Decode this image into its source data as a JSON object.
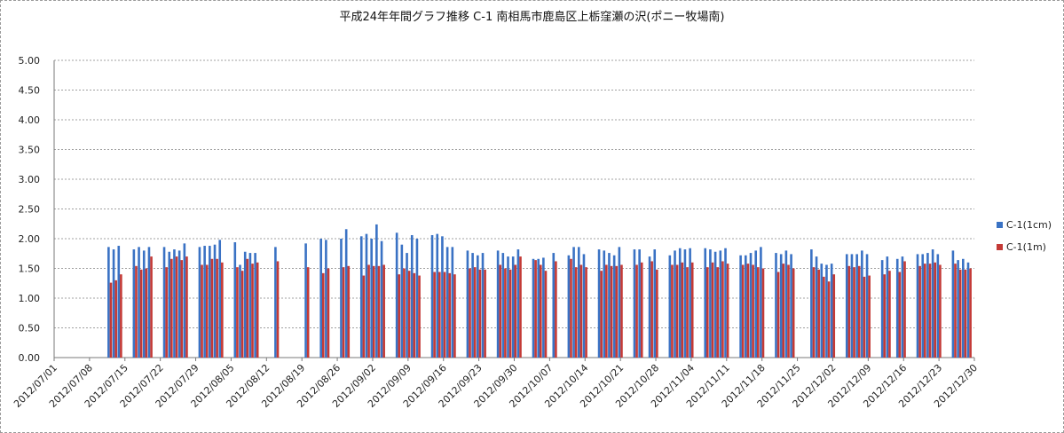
{
  "chart_data": {
    "type": "bar",
    "title": "平成24年年間グラフ推移 C-1 南相馬市鹿島区上栃窪瀬の沢(ポニー牧場南)",
    "xlabel": "",
    "ylabel": "",
    "ylim": [
      0,
      5
    ],
    "yticks": [
      "0.00",
      "0.50",
      "1.00",
      "1.50",
      "2.00",
      "2.50",
      "3.00",
      "3.50",
      "4.00",
      "4.50",
      "5.00"
    ],
    "xlim": [
      "2012/07/01",
      "2012/12/30"
    ],
    "xticks": [
      "2012/07/01",
      "2012/07/08",
      "2012/07/15",
      "2012/07/22",
      "2012/07/29",
      "2012/08/05",
      "2012/08/12",
      "2012/08/19",
      "2012/08/26",
      "2012/09/02",
      "2012/09/09",
      "2012/09/16",
      "2012/09/23",
      "2012/09/30",
      "2012/10/07",
      "2012/10/14",
      "2012/10/21",
      "2012/10/28",
      "2012/11/04",
      "2012/11/11",
      "2012/11/18",
      "2012/11/25",
      "2012/12/02",
      "2012/12/09",
      "2012/12/16",
      "2012/12/23",
      "2012/12/30"
    ],
    "grid": true,
    "legend_position": "right",
    "colors": {
      "series_1cm": "#3a72c4",
      "series_1m": "#c43a36",
      "grid": "#a0a0a0"
    },
    "series": [
      {
        "name": "C-1(1cm)",
        "points": [
          {
            "x": "2012/07/12",
            "y": 1.86
          },
          {
            "x": "2012/07/13",
            "y": 1.82
          },
          {
            "x": "2012/07/14",
            "y": 1.88
          },
          {
            "x": "2012/07/17",
            "y": 1.82
          },
          {
            "x": "2012/07/18",
            "y": 1.86
          },
          {
            "x": "2012/07/19",
            "y": 1.8
          },
          {
            "x": "2012/07/20",
            "y": 1.86
          },
          {
            "x": "2012/07/23",
            "y": 1.86
          },
          {
            "x": "2012/07/24",
            "y": 1.78
          },
          {
            "x": "2012/07/25",
            "y": 1.82
          },
          {
            "x": "2012/07/26",
            "y": 1.8
          },
          {
            "x": "2012/07/27",
            "y": 1.92
          },
          {
            "x": "2012/07/30",
            "y": 1.86
          },
          {
            "x": "2012/07/31",
            "y": 1.88
          },
          {
            "x": "2012/08/01",
            "y": 1.88
          },
          {
            "x": "2012/08/02",
            "y": 1.9
          },
          {
            "x": "2012/08/03",
            "y": 1.98
          },
          {
            "x": "2012/08/06",
            "y": 1.94
          },
          {
            "x": "2012/08/07",
            "y": 1.56
          },
          {
            "x": "2012/08/08",
            "y": 1.78
          },
          {
            "x": "2012/08/09",
            "y": 1.76
          },
          {
            "x": "2012/08/10",
            "y": 1.76
          },
          {
            "x": "2012/08/14",
            "y": 1.86
          },
          {
            "x": "2012/08/20",
            "y": 1.92
          },
          {
            "x": "2012/08/23",
            "y": 2.0
          },
          {
            "x": "2012/08/24",
            "y": 1.98
          },
          {
            "x": "2012/08/27",
            "y": 2.0
          },
          {
            "x": "2012/08/28",
            "y": 2.16
          },
          {
            "x": "2012/08/31",
            "y": 2.04
          },
          {
            "x": "2012/09/01",
            "y": 2.08
          },
          {
            "x": "2012/09/02",
            "y": 2.0
          },
          {
            "x": "2012/09/03",
            "y": 2.24
          },
          {
            "x": "2012/09/04",
            "y": 1.96
          },
          {
            "x": "2012/09/07",
            "y": 2.1
          },
          {
            "x": "2012/09/08",
            "y": 1.9
          },
          {
            "x": "2012/09/09",
            "y": 1.76
          },
          {
            "x": "2012/09/10",
            "y": 2.06
          },
          {
            "x": "2012/09/11",
            "y": 2.0
          },
          {
            "x": "2012/09/14",
            "y": 2.06
          },
          {
            "x": "2012/09/15",
            "y": 2.08
          },
          {
            "x": "2012/09/16",
            "y": 2.04
          },
          {
            "x": "2012/09/17",
            "y": 1.86
          },
          {
            "x": "2012/09/18",
            "y": 1.86
          },
          {
            "x": "2012/09/21",
            "y": 1.8
          },
          {
            "x": "2012/09/22",
            "y": 1.76
          },
          {
            "x": "2012/09/23",
            "y": 1.72
          },
          {
            "x": "2012/09/24",
            "y": 1.76
          },
          {
            "x": "2012/09/27",
            "y": 1.8
          },
          {
            "x": "2012/09/28",
            "y": 1.76
          },
          {
            "x": "2012/09/29",
            "y": 1.7
          },
          {
            "x": "2012/09/30",
            "y": 1.7
          },
          {
            "x": "2012/10/01",
            "y": 1.82
          },
          {
            "x": "2012/10/04",
            "y": 1.66
          },
          {
            "x": "2012/10/05",
            "y": 1.66
          },
          {
            "x": "2012/10/06",
            "y": 1.68
          },
          {
            "x": "2012/10/08",
            "y": 1.76
          },
          {
            "x": "2012/10/11",
            "y": 1.72
          },
          {
            "x": "2012/10/12",
            "y": 1.86
          },
          {
            "x": "2012/10/13",
            "y": 1.86
          },
          {
            "x": "2012/10/14",
            "y": 1.74
          },
          {
            "x": "2012/10/17",
            "y": 1.82
          },
          {
            "x": "2012/10/18",
            "y": 1.8
          },
          {
            "x": "2012/10/19",
            "y": 1.76
          },
          {
            "x": "2012/10/20",
            "y": 1.72
          },
          {
            "x": "2012/10/21",
            "y": 1.86
          },
          {
            "x": "2012/10/24",
            "y": 1.82
          },
          {
            "x": "2012/10/25",
            "y": 1.82
          },
          {
            "x": "2012/10/27",
            "y": 1.7
          },
          {
            "x": "2012/10/28",
            "y": 1.82
          },
          {
            "x": "2012/10/31",
            "y": 1.72
          },
          {
            "x": "2012/11/01",
            "y": 1.8
          },
          {
            "x": "2012/11/02",
            "y": 1.84
          },
          {
            "x": "2012/11/03",
            "y": 1.82
          },
          {
            "x": "2012/11/04",
            "y": 1.84
          },
          {
            "x": "2012/11/07",
            "y": 1.84
          },
          {
            "x": "2012/11/08",
            "y": 1.82
          },
          {
            "x": "2012/11/09",
            "y": 1.78
          },
          {
            "x": "2012/11/10",
            "y": 1.8
          },
          {
            "x": "2012/11/11",
            "y": 1.84
          },
          {
            "x": "2012/11/14",
            "y": 1.72
          },
          {
            "x": "2012/11/15",
            "y": 1.72
          },
          {
            "x": "2012/11/16",
            "y": 1.76
          },
          {
            "x": "2012/11/17",
            "y": 1.8
          },
          {
            "x": "2012/11/18",
            "y": 1.86
          },
          {
            "x": "2012/11/21",
            "y": 1.76
          },
          {
            "x": "2012/11/22",
            "y": 1.74
          },
          {
            "x": "2012/11/23",
            "y": 1.8
          },
          {
            "x": "2012/11/24",
            "y": 1.74
          },
          {
            "x": "2012/11/28",
            "y": 1.82
          },
          {
            "x": "2012/11/29",
            "y": 1.7
          },
          {
            "x": "2012/11/30",
            "y": 1.58
          },
          {
            "x": "2012/12/01",
            "y": 1.56
          },
          {
            "x": "2012/12/02",
            "y": 1.58
          },
          {
            "x": "2012/12/05",
            "y": 1.74
          },
          {
            "x": "2012/12/06",
            "y": 1.74
          },
          {
            "x": "2012/12/07",
            "y": 1.74
          },
          {
            "x": "2012/12/08",
            "y": 1.8
          },
          {
            "x": "2012/12/09",
            "y": 1.74
          },
          {
            "x": "2012/12/12",
            "y": 1.64
          },
          {
            "x": "2012/12/13",
            "y": 1.7
          },
          {
            "x": "2012/12/15",
            "y": 1.66
          },
          {
            "x": "2012/12/16",
            "y": 1.7
          },
          {
            "x": "2012/12/19",
            "y": 1.74
          },
          {
            "x": "2012/12/20",
            "y": 1.74
          },
          {
            "x": "2012/12/21",
            "y": 1.76
          },
          {
            "x": "2012/12/22",
            "y": 1.82
          },
          {
            "x": "2012/12/23",
            "y": 1.74
          },
          {
            "x": "2012/12/26",
            "y": 1.8
          },
          {
            "x": "2012/12/27",
            "y": 1.64
          },
          {
            "x": "2012/12/28",
            "y": 1.66
          },
          {
            "x": "2012/12/29",
            "y": 1.6
          }
        ]
      },
      {
        "name": "C-1(1m)",
        "points": [
          {
            "x": "2012/07/12",
            "y": 1.26
          },
          {
            "x": "2012/07/13",
            "y": 1.3
          },
          {
            "x": "2012/07/14",
            "y": 1.4
          },
          {
            "x": "2012/07/17",
            "y": 1.54
          },
          {
            "x": "2012/07/18",
            "y": 1.48
          },
          {
            "x": "2012/07/19",
            "y": 1.5
          },
          {
            "x": "2012/07/20",
            "y": 1.7
          },
          {
            "x": "2012/07/23",
            "y": 1.52
          },
          {
            "x": "2012/07/24",
            "y": 1.66
          },
          {
            "x": "2012/07/25",
            "y": 1.7
          },
          {
            "x": "2012/07/26",
            "y": 1.64
          },
          {
            "x": "2012/07/27",
            "y": 1.7
          },
          {
            "x": "2012/07/30",
            "y": 1.56
          },
          {
            "x": "2012/07/31",
            "y": 1.56
          },
          {
            "x": "2012/08/01",
            "y": 1.66
          },
          {
            "x": "2012/08/02",
            "y": 1.66
          },
          {
            "x": "2012/08/03",
            "y": 1.6
          },
          {
            "x": "2012/08/06",
            "y": 1.52
          },
          {
            "x": "2012/08/07",
            "y": 1.46
          },
          {
            "x": "2012/08/08",
            "y": 1.66
          },
          {
            "x": "2012/08/09",
            "y": 1.58
          },
          {
            "x": "2012/08/10",
            "y": 1.6
          },
          {
            "x": "2012/08/14",
            "y": 1.62
          },
          {
            "x": "2012/08/20",
            "y": 1.52
          },
          {
            "x": "2012/08/23",
            "y": 1.42
          },
          {
            "x": "2012/08/24",
            "y": 1.5
          },
          {
            "x": "2012/08/27",
            "y": 1.52
          },
          {
            "x": "2012/08/28",
            "y": 1.54
          },
          {
            "x": "2012/08/31",
            "y": 1.38
          },
          {
            "x": "2012/09/01",
            "y": 1.56
          },
          {
            "x": "2012/09/02",
            "y": 1.54
          },
          {
            "x": "2012/09/03",
            "y": 1.54
          },
          {
            "x": "2012/09/04",
            "y": 1.56
          },
          {
            "x": "2012/09/07",
            "y": 1.4
          },
          {
            "x": "2012/09/08",
            "y": 1.5
          },
          {
            "x": "2012/09/09",
            "y": 1.46
          },
          {
            "x": "2012/09/10",
            "y": 1.42
          },
          {
            "x": "2012/09/11",
            "y": 1.38
          },
          {
            "x": "2012/09/14",
            "y": 1.44
          },
          {
            "x": "2012/09/15",
            "y": 1.44
          },
          {
            "x": "2012/09/16",
            "y": 1.44
          },
          {
            "x": "2012/09/17",
            "y": 1.42
          },
          {
            "x": "2012/09/18",
            "y": 1.4
          },
          {
            "x": "2012/09/21",
            "y": 1.5
          },
          {
            "x": "2012/09/22",
            "y": 1.52
          },
          {
            "x": "2012/09/23",
            "y": 1.48
          },
          {
            "x": "2012/09/24",
            "y": 1.48
          },
          {
            "x": "2012/09/27",
            "y": 1.56
          },
          {
            "x": "2012/09/28",
            "y": 1.5
          },
          {
            "x": "2012/09/29",
            "y": 1.48
          },
          {
            "x": "2012/09/30",
            "y": 1.56
          },
          {
            "x": "2012/10/01",
            "y": 1.7
          },
          {
            "x": "2012/10/04",
            "y": 1.64
          },
          {
            "x": "2012/10/05",
            "y": 1.56
          },
          {
            "x": "2012/10/06",
            "y": 1.46
          },
          {
            "x": "2012/10/08",
            "y": 1.62
          },
          {
            "x": "2012/10/11",
            "y": 1.66
          },
          {
            "x": "2012/10/12",
            "y": 1.52
          },
          {
            "x": "2012/10/13",
            "y": 1.56
          },
          {
            "x": "2012/10/14",
            "y": 1.52
          },
          {
            "x": "2012/10/17",
            "y": 1.46
          },
          {
            "x": "2012/10/18",
            "y": 1.56
          },
          {
            "x": "2012/10/19",
            "y": 1.54
          },
          {
            "x": "2012/10/20",
            "y": 1.54
          },
          {
            "x": "2012/10/21",
            "y": 1.56
          },
          {
            "x": "2012/10/24",
            "y": 1.56
          },
          {
            "x": "2012/10/25",
            "y": 1.6
          },
          {
            "x": "2012/10/27",
            "y": 1.62
          },
          {
            "x": "2012/10/28",
            "y": 1.48
          },
          {
            "x": "2012/10/31",
            "y": 1.56
          },
          {
            "x": "2012/11/01",
            "y": 1.56
          },
          {
            "x": "2012/11/02",
            "y": 1.6
          },
          {
            "x": "2012/11/03",
            "y": 1.52
          },
          {
            "x": "2012/11/04",
            "y": 1.6
          },
          {
            "x": "2012/11/07",
            "y": 1.52
          },
          {
            "x": "2012/11/08",
            "y": 1.6
          },
          {
            "x": "2012/11/09",
            "y": 1.52
          },
          {
            "x": "2012/11/10",
            "y": 1.62
          },
          {
            "x": "2012/11/11",
            "y": 1.58
          },
          {
            "x": "2012/11/14",
            "y": 1.56
          },
          {
            "x": "2012/11/15",
            "y": 1.58
          },
          {
            "x": "2012/11/16",
            "y": 1.56
          },
          {
            "x": "2012/11/17",
            "y": 1.52
          },
          {
            "x": "2012/11/18",
            "y": 1.5
          },
          {
            "x": "2012/11/21",
            "y": 1.44
          },
          {
            "x": "2012/11/22",
            "y": 1.58
          },
          {
            "x": "2012/11/23",
            "y": 1.56
          },
          {
            "x": "2012/11/24",
            "y": 1.5
          },
          {
            "x": "2012/11/28",
            "y": 1.52
          },
          {
            "x": "2012/11/29",
            "y": 1.48
          },
          {
            "x": "2012/11/30",
            "y": 1.36
          },
          {
            "x": "2012/12/01",
            "y": 1.28
          },
          {
            "x": "2012/12/02",
            "y": 1.4
          },
          {
            "x": "2012/12/05",
            "y": 1.54
          },
          {
            "x": "2012/12/06",
            "y": 1.52
          },
          {
            "x": "2012/12/07",
            "y": 1.54
          },
          {
            "x": "2012/12/08",
            "y": 1.36
          },
          {
            "x": "2012/12/09",
            "y": 1.38
          },
          {
            "x": "2012/12/12",
            "y": 1.4
          },
          {
            "x": "2012/12/13",
            "y": 1.46
          },
          {
            "x": "2012/12/15",
            "y": 1.44
          },
          {
            "x": "2012/12/16",
            "y": 1.62
          },
          {
            "x": "2012/12/19",
            "y": 1.54
          },
          {
            "x": "2012/12/20",
            "y": 1.58
          },
          {
            "x": "2012/12/21",
            "y": 1.58
          },
          {
            "x": "2012/12/22",
            "y": 1.6
          },
          {
            "x": "2012/12/23",
            "y": 1.56
          },
          {
            "x": "2012/12/26",
            "y": 1.58
          },
          {
            "x": "2012/12/27",
            "y": 1.48
          },
          {
            "x": "2012/12/28",
            "y": 1.48
          },
          {
            "x": "2012/12/29",
            "y": 1.5
          }
        ]
      }
    ]
  }
}
